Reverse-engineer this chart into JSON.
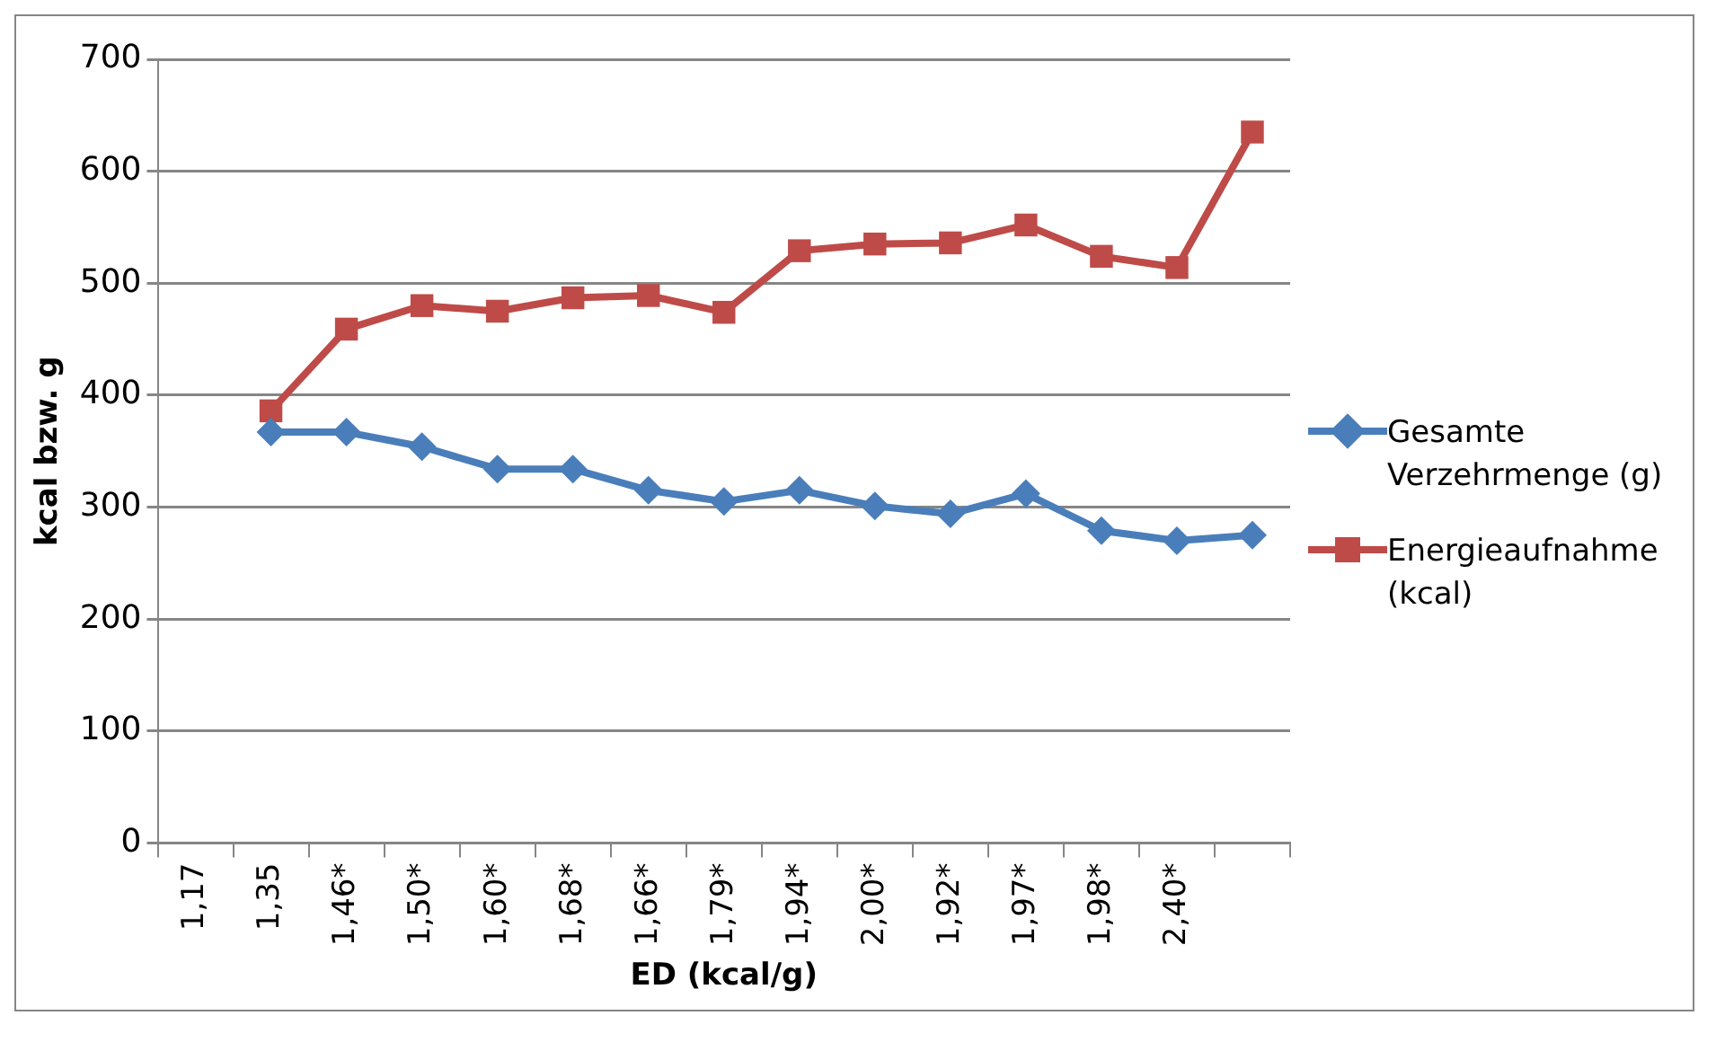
{
  "chart_data": {
    "type": "line",
    "xlabel": "ED (kcal/g)",
    "ylabel": "kcal bzw. g",
    "categories": [
      "1,17",
      "1,35",
      "1,46*",
      "1,50*",
      "1,60*",
      "1,68*",
      "1,66*",
      "1,79*",
      "1,94*",
      "2,00*",
      "1,92*",
      "1,97*",
      "1,98*",
      "2,40*",
      null
    ],
    "series": [
      {
        "name": "Gesamte Verzehrmenge (g)",
        "color": "#4a7ebb",
        "marker": "diamond",
        "values": [
          null,
          367,
          367,
          354,
          334,
          334,
          315,
          305,
          315,
          301,
          294,
          312,
          279,
          270,
          275
        ]
      },
      {
        "name": "Energieaufnahme (kcal)",
        "color": "#be4b48",
        "marker": "square",
        "values": [
          null,
          386,
          459,
          480,
          475,
          487,
          489,
          474,
          529,
          535,
          536,
          552,
          524,
          514,
          635
        ]
      }
    ],
    "ylim": [
      0,
      700
    ],
    "yticks": [
      0,
      100,
      200,
      300,
      400,
      500,
      600,
      700
    ],
    "grid": "y",
    "legend": "right"
  }
}
